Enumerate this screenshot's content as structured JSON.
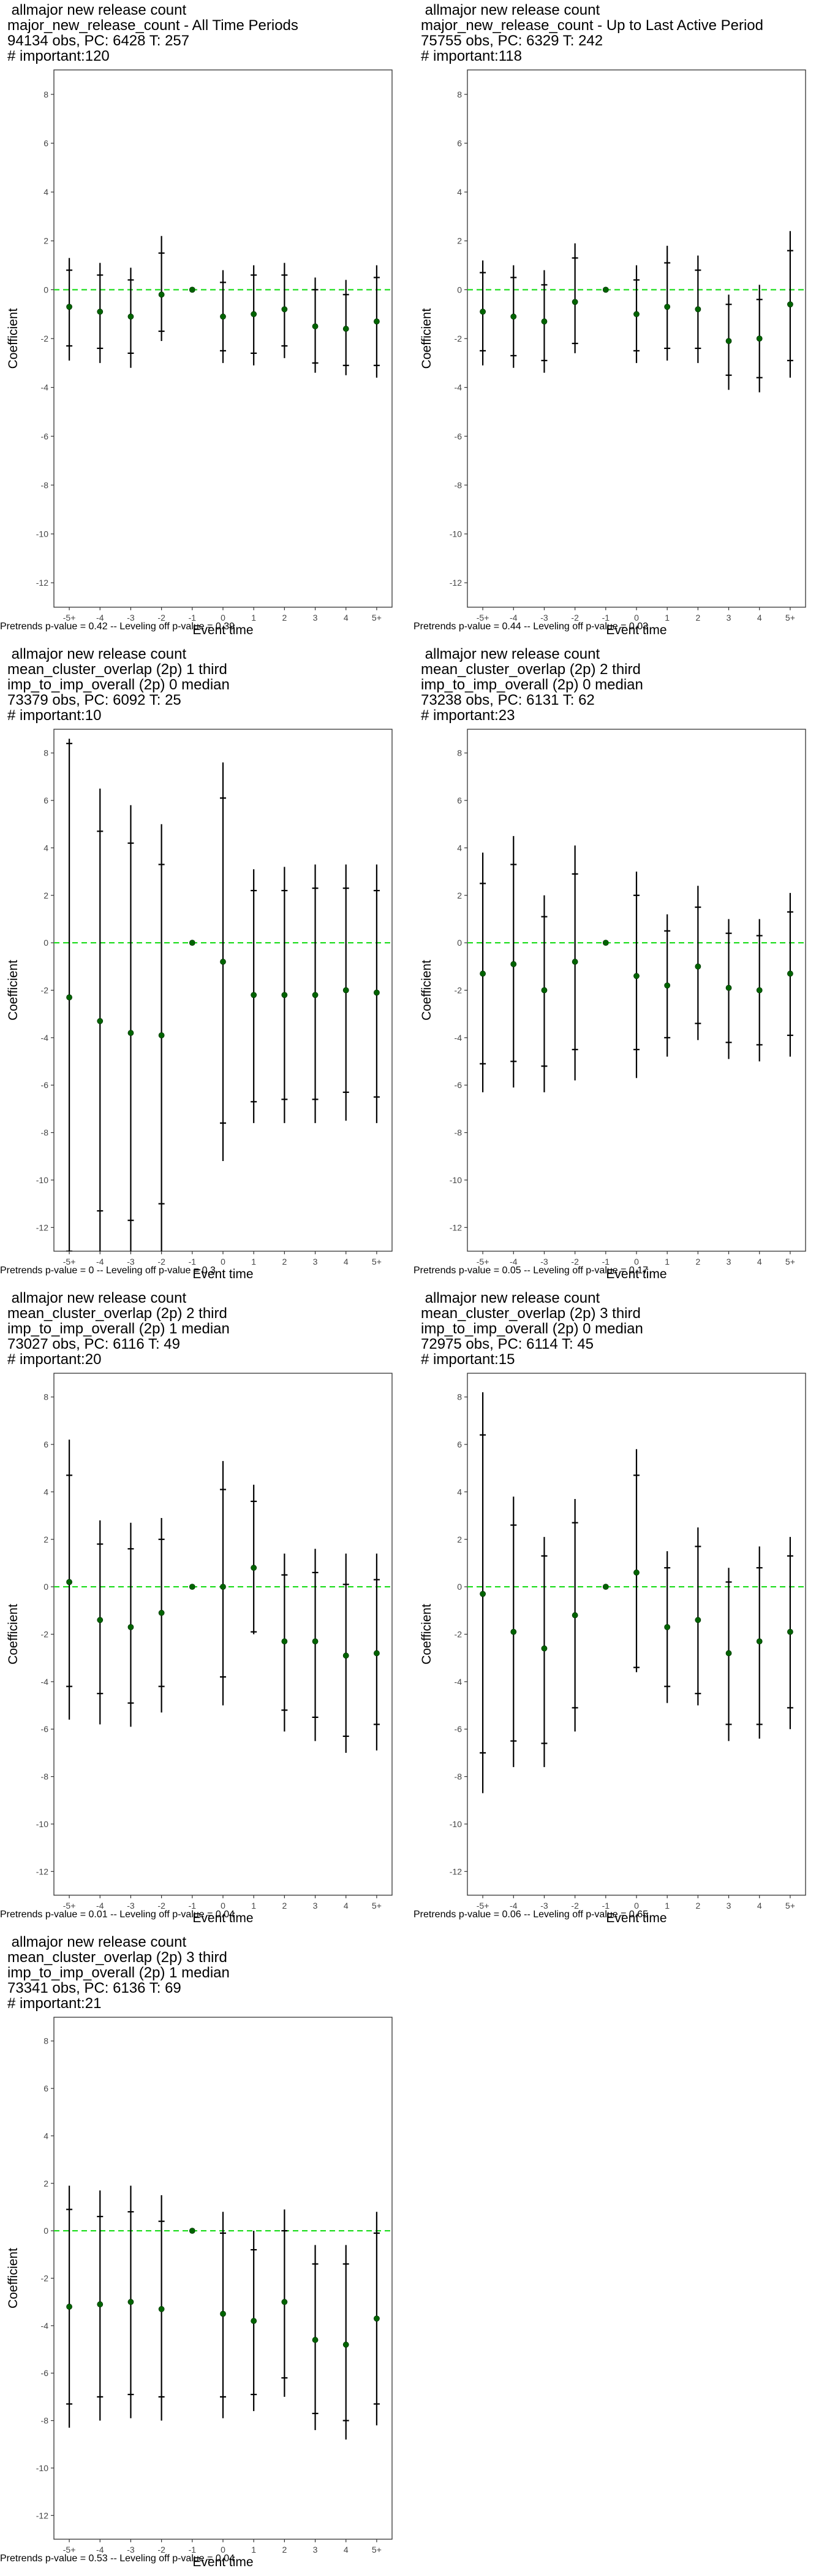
{
  "chart_data": [
    {
      "type": "errorbar",
      "title_lines": [
        " allmajor new release count",
        "major_new_release_count - All Time Periods",
        "94134 obs, PC: 6428 T: 257",
        "# important:120"
      ],
      "caption": "Pretrends p-value = 0.42 -- Leveling off p-value = 0.39",
      "xlabel": "Event time",
      "ylabel": "Coefficient",
      "categories": [
        "-5+",
        "-4",
        "-3",
        "-2",
        "-1",
        "0",
        "1",
        "2",
        "3",
        "4",
        "5+"
      ],
      "ylim": [
        -13,
        9
      ],
      "yticks": [
        -12,
        -10,
        -8,
        -6,
        -4,
        -2,
        0,
        2,
        4,
        6,
        8
      ],
      "estimates": [
        -0.7,
        -0.9,
        -1.1,
        -0.2,
        0.0,
        -1.1,
        -1.0,
        -0.8,
        -1.5,
        -1.6,
        -1.3
      ],
      "ci_outer": [
        [
          -2.9,
          1.3
        ],
        [
          -3.0,
          1.1
        ],
        [
          -3.2,
          0.9
        ],
        [
          -2.1,
          2.2
        ],
        [
          0,
          0
        ],
        [
          -3.0,
          0.8
        ],
        [
          -3.1,
          1.0
        ],
        [
          -2.8,
          1.1
        ],
        [
          -3.4,
          0.5
        ],
        [
          -3.5,
          0.4
        ],
        [
          -3.6,
          1.0
        ]
      ],
      "ci_inner": [
        [
          -2.3,
          0.8
        ],
        [
          -2.4,
          0.6
        ],
        [
          -2.6,
          0.4
        ],
        [
          -1.7,
          1.5
        ],
        [
          0,
          0
        ],
        [
          -2.5,
          0.3
        ],
        [
          -2.6,
          0.6
        ],
        [
          -2.3,
          0.6
        ],
        [
          -3.0,
          0.0
        ],
        [
          -3.1,
          -0.2
        ],
        [
          -3.1,
          0.5
        ]
      ],
      "reference_line": 0
    },
    {
      "type": "errorbar",
      "title_lines": [
        " allmajor new release count",
        "major_new_release_count - Up to Last Active Period",
        "75755 obs, PC: 6329 T: 242",
        "# important:118"
      ],
      "caption": "Pretrends p-value = 0.44 -- Leveling off p-value = 0.03",
      "xlabel": "Event time",
      "ylabel": "Coefficient",
      "categories": [
        "-5+",
        "-4",
        "-3",
        "-2",
        "-1",
        "0",
        "1",
        "2",
        "3",
        "4",
        "5+"
      ],
      "ylim": [
        -13,
        9
      ],
      "yticks": [
        -12,
        -10,
        -8,
        -6,
        -4,
        -2,
        0,
        2,
        4,
        6,
        8
      ],
      "estimates": [
        -0.9,
        -1.1,
        -1.3,
        -0.5,
        0.0,
        -1.0,
        -0.7,
        -0.8,
        -2.1,
        -2.0,
        -0.6
      ],
      "ci_outer": [
        [
          -3.1,
          1.2
        ],
        [
          -3.2,
          1.0
        ],
        [
          -3.4,
          0.8
        ],
        [
          -2.6,
          1.9
        ],
        [
          0,
          0
        ],
        [
          -3.0,
          1.0
        ],
        [
          -2.9,
          1.8
        ],
        [
          -3.0,
          1.4
        ],
        [
          -4.1,
          -0.2
        ],
        [
          -4.2,
          0.2
        ],
        [
          -3.6,
          2.4
        ]
      ],
      "ci_inner": [
        [
          -2.5,
          0.7
        ],
        [
          -2.7,
          0.5
        ],
        [
          -2.9,
          0.2
        ],
        [
          -2.2,
          1.3
        ],
        [
          0,
          0
        ],
        [
          -2.5,
          0.4
        ],
        [
          -2.4,
          1.1
        ],
        [
          -2.4,
          0.8
        ],
        [
          -3.5,
          -0.6
        ],
        [
          -3.6,
          -0.4
        ],
        [
          -2.9,
          1.6
        ]
      ],
      "reference_line": 0
    },
    {
      "type": "errorbar",
      "title_lines": [
        " allmajor new release count",
        "mean_cluster_overlap (2p) 1 third",
        "imp_to_imp_overall (2p) 0 median",
        "73379 obs, PC: 6092 T: 25",
        "# important:10"
      ],
      "caption": "Pretrends p-value = 0 -- Leveling off p-value = 0.3",
      "xlabel": "Event time",
      "ylabel": "Coefficient",
      "categories": [
        "-5+",
        "-4",
        "-3",
        "-2",
        "-1",
        "0",
        "1",
        "2",
        "3",
        "4",
        "5+"
      ],
      "ylim": [
        -13,
        9
      ],
      "yticks": [
        -12,
        -10,
        -8,
        -6,
        -4,
        -2,
        0,
        2,
        4,
        6,
        8
      ],
      "estimates": [
        -2.3,
        -3.3,
        -3.8,
        -3.9,
        0.0,
        -0.8,
        -2.2,
        -2.2,
        -2.2,
        -2.0,
        -2.1
      ],
      "ci_outer": [
        [
          -13,
          8.6
        ],
        [
          -13,
          6.5
        ],
        [
          -13,
          5.8
        ],
        [
          -13,
          5.0
        ],
        [
          0,
          0
        ],
        [
          -9.2,
          7.6
        ],
        [
          -7.6,
          3.1
        ],
        [
          -7.6,
          3.2
        ],
        [
          -7.6,
          3.3
        ],
        [
          -7.5,
          3.3
        ],
        [
          -7.6,
          3.3
        ]
      ],
      "ci_inner": [
        [
          -13,
          8.4
        ],
        [
          -11.3,
          4.7
        ],
        [
          -11.7,
          4.2
        ],
        [
          -11.0,
          3.3
        ],
        [
          0,
          0
        ],
        [
          -7.6,
          6.1
        ],
        [
          -6.7,
          2.2
        ],
        [
          -6.6,
          2.2
        ],
        [
          -6.6,
          2.3
        ],
        [
          -6.3,
          2.3
        ],
        [
          -6.5,
          2.2
        ]
      ],
      "reference_line": 0
    },
    {
      "type": "errorbar",
      "title_lines": [
        " allmajor new release count",
        "mean_cluster_overlap (2p) 2 third",
        "imp_to_imp_overall (2p) 0 median",
        "73238 obs, PC: 6131 T: 62",
        "# important:23"
      ],
      "caption": "Pretrends p-value = 0.05 -- Leveling off p-value = 0.17",
      "xlabel": "Event time",
      "ylabel": "Coefficient",
      "categories": [
        "-5+",
        "-4",
        "-3",
        "-2",
        "-1",
        "0",
        "1",
        "2",
        "3",
        "4",
        "5+"
      ],
      "ylim": [
        -13,
        9
      ],
      "yticks": [
        -12,
        -10,
        -8,
        -6,
        -4,
        -2,
        0,
        2,
        4,
        6,
        8
      ],
      "estimates": [
        -1.3,
        -0.9,
        -2.0,
        -0.8,
        0.0,
        -1.4,
        -1.8,
        -1.0,
        -1.9,
        -2.0,
        -1.3
      ],
      "ci_outer": [
        [
          -6.3,
          3.8
        ],
        [
          -6.1,
          4.5
        ],
        [
          -6.3,
          2.0
        ],
        [
          -5.8,
          4.1
        ],
        [
          0,
          0
        ],
        [
          -5.7,
          3.0
        ],
        [
          -4.8,
          1.2
        ],
        [
          -4.1,
          2.4
        ],
        [
          -4.9,
          1.0
        ],
        [
          -5.0,
          1.0
        ],
        [
          -4.8,
          2.1
        ]
      ],
      "ci_inner": [
        [
          -5.1,
          2.5
        ],
        [
          -5.0,
          3.3
        ],
        [
          -5.2,
          1.1
        ],
        [
          -4.5,
          2.9
        ],
        [
          0,
          0
        ],
        [
          -4.5,
          2.0
        ],
        [
          -4.0,
          0.5
        ],
        [
          -3.4,
          1.5
        ],
        [
          -4.2,
          0.4
        ],
        [
          -4.3,
          0.3
        ],
        [
          -3.9,
          1.3
        ]
      ],
      "reference_line": 0
    },
    {
      "type": "errorbar",
      "title_lines": [
        " allmajor new release count",
        "mean_cluster_overlap (2p) 2 third",
        "imp_to_imp_overall (2p) 1 median",
        "73027 obs, PC: 6116 T: 49",
        "# important:20"
      ],
      "caption": "Pretrends p-value = 0.01 -- Leveling off p-value = 0.04",
      "xlabel": "Event time",
      "ylabel": "Coefficient",
      "categories": [
        "-5+",
        "-4",
        "-3",
        "-2",
        "-1",
        "0",
        "1",
        "2",
        "3",
        "4",
        "5+"
      ],
      "ylim": [
        -13,
        9
      ],
      "yticks": [
        -12,
        -10,
        -8,
        -6,
        -4,
        -2,
        0,
        2,
        4,
        6,
        8
      ],
      "estimates": [
        0.2,
        -1.4,
        -1.7,
        -1.1,
        0.0,
        0.0,
        0.8,
        -2.3,
        -2.3,
        -2.9,
        -2.8
      ],
      "ci_outer": [
        [
          -5.6,
          6.2
        ],
        [
          -5.8,
          2.8
        ],
        [
          -5.9,
          2.7
        ],
        [
          -5.3,
          2.9
        ],
        [
          0,
          0
        ],
        [
          -5.0,
          5.3
        ],
        [
          -2.0,
          4.3
        ],
        [
          -6.1,
          1.4
        ],
        [
          -6.5,
          1.6
        ],
        [
          -7.0,
          1.4
        ],
        [
          -6.9,
          1.4
        ]
      ],
      "ci_inner": [
        [
          -4.2,
          4.7
        ],
        [
          -4.5,
          1.8
        ],
        [
          -4.9,
          1.6
        ],
        [
          -4.2,
          2.0
        ],
        [
          0,
          0
        ],
        [
          -3.8,
          4.1
        ],
        [
          -1.9,
          3.6
        ],
        [
          -5.2,
          0.5
        ],
        [
          -5.5,
          0.6
        ],
        [
          -6.3,
          0.1
        ],
        [
          -5.8,
          0.3
        ]
      ],
      "reference_line": 0
    },
    {
      "type": "errorbar",
      "title_lines": [
        " allmajor new release count",
        "mean_cluster_overlap (2p) 3 third",
        "imp_to_imp_overall (2p) 0 median",
        "72975 obs, PC: 6114 T: 45",
        "# important:15"
      ],
      "caption": "Pretrends p-value = 0.06 -- Leveling off p-value = 0.65",
      "xlabel": "Event time",
      "ylabel": "Coefficient",
      "categories": [
        "-5+",
        "-4",
        "-3",
        "-2",
        "-1",
        "0",
        "1",
        "2",
        "3",
        "4",
        "5+"
      ],
      "ylim": [
        -13,
        9
      ],
      "yticks": [
        -12,
        -10,
        -8,
        -6,
        -4,
        -2,
        0,
        2,
        4,
        6,
        8
      ],
      "estimates": [
        -0.3,
        -1.9,
        -2.6,
        -1.2,
        0.0,
        0.6,
        -1.7,
        -1.4,
        -2.8,
        -2.3,
        -1.9
      ],
      "ci_outer": [
        [
          -8.7,
          8.2
        ],
        [
          -7.6,
          3.8
        ],
        [
          -7.6,
          2.1
        ],
        [
          -6.1,
          3.7
        ],
        [
          0,
          0
        ],
        [
          -3.6,
          5.8
        ],
        [
          -4.9,
          1.5
        ],
        [
          -5.0,
          2.5
        ],
        [
          -6.5,
          0.8
        ],
        [
          -6.4,
          1.7
        ],
        [
          -6.0,
          2.1
        ]
      ],
      "ci_inner": [
        [
          -7.0,
          6.4
        ],
        [
          -6.5,
          2.6
        ],
        [
          -6.6,
          1.3
        ],
        [
          -5.1,
          2.7
        ],
        [
          0,
          0
        ],
        [
          -3.4,
          4.7
        ],
        [
          -4.2,
          0.8
        ],
        [
          -4.5,
          1.7
        ],
        [
          -5.8,
          0.2
        ],
        [
          -5.8,
          0.8
        ],
        [
          -5.1,
          1.3
        ]
      ],
      "reference_line": 0
    },
    {
      "type": "errorbar",
      "title_lines": [
        " allmajor new release count",
        "mean_cluster_overlap (2p) 3 third",
        "imp_to_imp_overall (2p) 1 median",
        "73341 obs, PC: 6136 T: 69",
        "# important:21"
      ],
      "caption": "Pretrends p-value = 0.53 -- Leveling off p-value = 0.04",
      "xlabel": "Event time",
      "ylabel": "Coefficient",
      "categories": [
        "-5+",
        "-4",
        "-3",
        "-2",
        "-1",
        "0",
        "1",
        "2",
        "3",
        "4",
        "5+"
      ],
      "ylim": [
        -13,
        9
      ],
      "yticks": [
        -12,
        -10,
        -8,
        -6,
        -4,
        -2,
        0,
        2,
        4,
        6,
        8
      ],
      "estimates": [
        -3.2,
        -3.1,
        -3.0,
        -3.3,
        0.0,
        -3.5,
        -3.8,
        -3.0,
        -4.6,
        -4.8,
        -3.7
      ],
      "ci_outer": [
        [
          -8.3,
          1.9
        ],
        [
          -8.0,
          1.7
        ],
        [
          -7.9,
          1.9
        ],
        [
          -8.0,
          1.5
        ],
        [
          0,
          0
        ],
        [
          -7.9,
          0.8
        ],
        [
          -7.6,
          0.0
        ],
        [
          -7.0,
          0.9
        ],
        [
          -8.4,
          -0.6
        ],
        [
          -8.8,
          -0.6
        ],
        [
          -8.2,
          0.8
        ]
      ],
      "ci_inner": [
        [
          -7.3,
          0.9
        ],
        [
          -7.0,
          0.6
        ],
        [
          -6.9,
          0.8
        ],
        [
          -7.0,
          0.4
        ],
        [
          0,
          0
        ],
        [
          -7.0,
          -0.1
        ],
        [
          -6.9,
          -0.8
        ],
        [
          -6.2,
          0.0
        ],
        [
          -7.7,
          -1.4
        ],
        [
          -8.0,
          -1.4
        ],
        [
          -7.3,
          -0.1
        ]
      ],
      "reference_line": 0
    }
  ],
  "colors": {
    "point": "#006400",
    "errorbar": "#000000",
    "reference": "#22dd22",
    "panel_border": "#333333",
    "tick_label": "#444444"
  }
}
